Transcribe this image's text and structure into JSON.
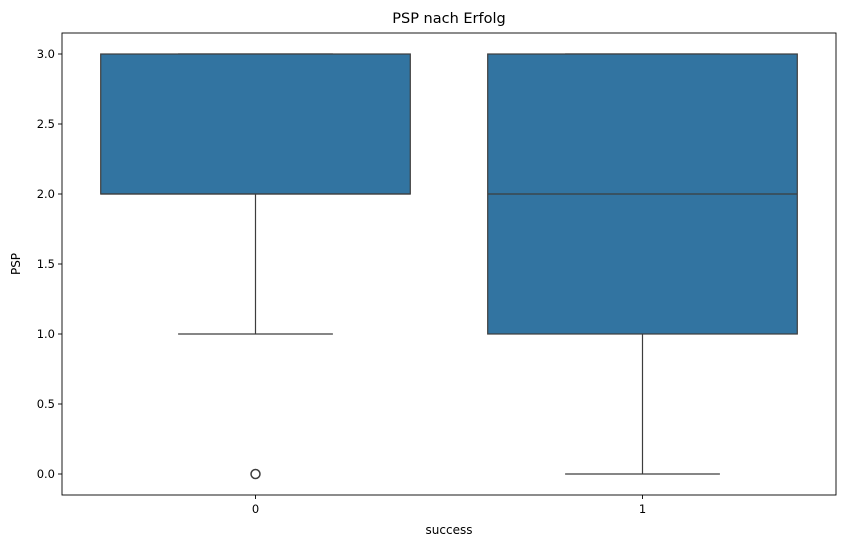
{
  "chart_data": {
    "type": "box",
    "title": "PSP nach Erfolg",
    "xlabel": "success",
    "ylabel": "PSP",
    "categories": [
      "0",
      "1"
    ],
    "ylim": [
      -0.15,
      3.15
    ],
    "yticks": [
      "0.0",
      "0.5",
      "1.0",
      "1.5",
      "2.0",
      "2.5",
      "3.0"
    ],
    "grid": false,
    "legend": "none",
    "series": [
      {
        "category": "0",
        "whisker_low": 1.0,
        "q1": 2.0,
        "median": 2.0,
        "q3": 3.0,
        "whisker_high": 3.0,
        "outliers": [
          0.0
        ]
      },
      {
        "category": "1",
        "whisker_low": 0.0,
        "q1": 1.0,
        "median": 2.0,
        "q3": 3.0,
        "whisker_high": 3.0,
        "outliers": []
      }
    ],
    "colors": {
      "box_fill": "#3274a1",
      "line": "#3d3d3d"
    }
  }
}
